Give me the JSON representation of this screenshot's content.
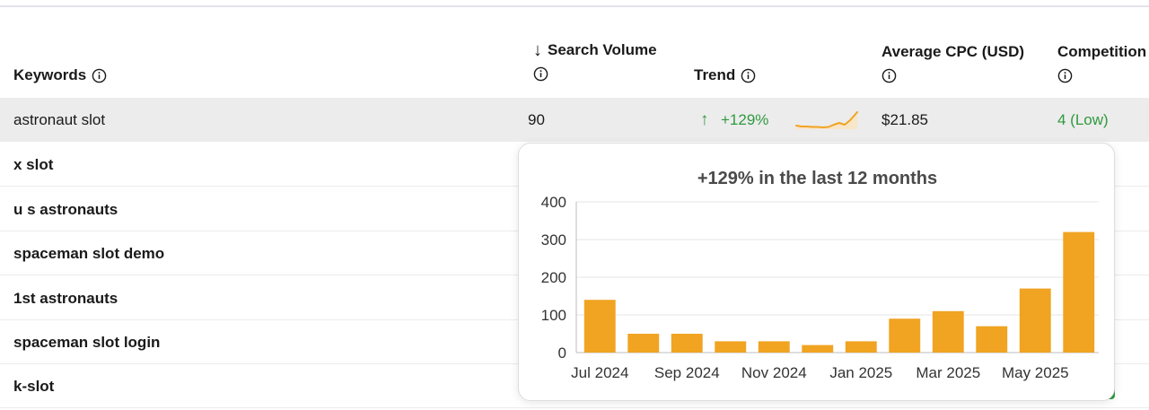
{
  "columns": {
    "keywords": "Keywords",
    "search_volume_arrow": "↓",
    "search_volume": "Search Volume",
    "trend": "Trend",
    "average_cpc": "Average CPC (USD)",
    "competition": "Competition"
  },
  "rows": [
    {
      "keyword": "astronaut slot",
      "search_volume": "90",
      "trend_arrow": "↑",
      "trend": "+129%",
      "cpc": "$21.85",
      "competition": "4 (Low)"
    },
    {
      "keyword": "x slot"
    },
    {
      "keyword": "u s astronauts"
    },
    {
      "keyword": "spaceman slot demo"
    },
    {
      "keyword": "1st astronauts"
    },
    {
      "keyword": "spaceman slot login"
    },
    {
      "keyword": "k-slot"
    }
  ],
  "colors": {
    "accent_bar": "#f0a422",
    "trend_up": "#2f9a3e",
    "row_highlight": "#ececec"
  },
  "icons": {
    "info": "info-circle-icon",
    "sort": "arrow-down-icon",
    "trend_up": "arrow-up-icon"
  },
  "popup": {
    "title": "+129% in the last 12 months"
  },
  "chart_data": {
    "type": "bar",
    "title": "+129% in the last 12 months",
    "categories": [
      "Jul 2024",
      "Aug 2024",
      "Sep 2024",
      "Oct 2024",
      "Nov 2024",
      "Dec 2024",
      "Jan 2025",
      "Feb 2025",
      "Mar 2025",
      "Apr 2025",
      "May 2025",
      "Jun 2025"
    ],
    "values": [
      140,
      50,
      50,
      30,
      30,
      20,
      30,
      90,
      110,
      70,
      170,
      320
    ],
    "x_tick_labels": [
      "Jul 2024",
      "Sep 2024",
      "Nov 2024",
      "Jan 2025",
      "Mar 2025",
      "May 2025"
    ],
    "y_ticks": [
      "0",
      "100",
      "200",
      "300",
      "400"
    ],
    "ylim": [
      0,
      400
    ],
    "grid": true,
    "legend": "none",
    "color": "#f0a422"
  }
}
